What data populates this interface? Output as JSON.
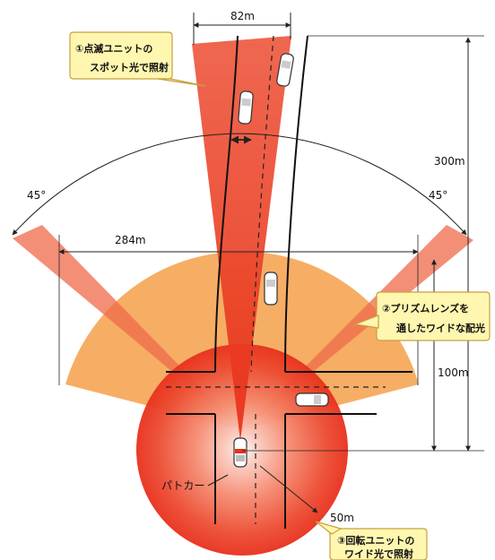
{
  "dimensions": {
    "spot_width": "82m",
    "spot_length": "300m",
    "wide_width": "284m",
    "wide_length": "100m",
    "rotation_radius": "50m",
    "angle_left": "45°",
    "angle_right": "45°"
  },
  "callouts": {
    "spot_line1": "①点滅ユニットの",
    "spot_line2": "スポット光で照射",
    "prism_line1": "②プリズムレンズを",
    "prism_line2": "通したワイドな配光",
    "rotate_line1": "③回転ユニットの",
    "rotate_line2": "ワイド光で照射"
  },
  "vehicle_label": "パトカー",
  "colors": {
    "spot_beam": "#e8402a",
    "wide_fan": "#f5a04a",
    "rotation_glow": "#e8301c",
    "callout_fill": "#fff7b0",
    "callout_border": "#c8a040"
  },
  "icons": [
    "patrol-car-icon",
    "car-icon"
  ]
}
